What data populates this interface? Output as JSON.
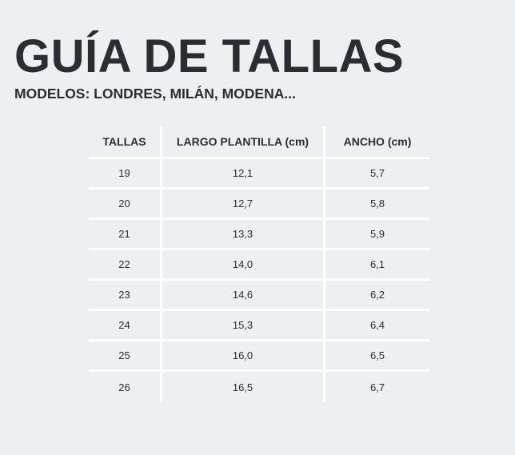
{
  "header": {
    "title": "GUÍA DE TALLAS",
    "subtitle": "MODELOS: LONDRES, MILÁN, MODENA..."
  },
  "table": {
    "columns": [
      "TALLAS",
      "LARGO PLANTILLA (cm)",
      "ANCHO (cm)"
    ],
    "rows": [
      [
        "19",
        "12,1",
        "5,7"
      ],
      [
        "20",
        "12,7",
        "5,8"
      ],
      [
        "21",
        "13,3",
        "5,9"
      ],
      [
        "22",
        "14,0",
        "6,1"
      ],
      [
        "23",
        "14,6",
        "6,2"
      ],
      [
        "24",
        "15,3",
        "6,4"
      ],
      [
        "25",
        "16,0",
        "6,5"
      ],
      [
        "26",
        "16,5",
        "6,7"
      ]
    ]
  },
  "colors": {
    "background": "#eeeff0",
    "text": "#2b2d33",
    "gridlines": "#ffffff"
  }
}
